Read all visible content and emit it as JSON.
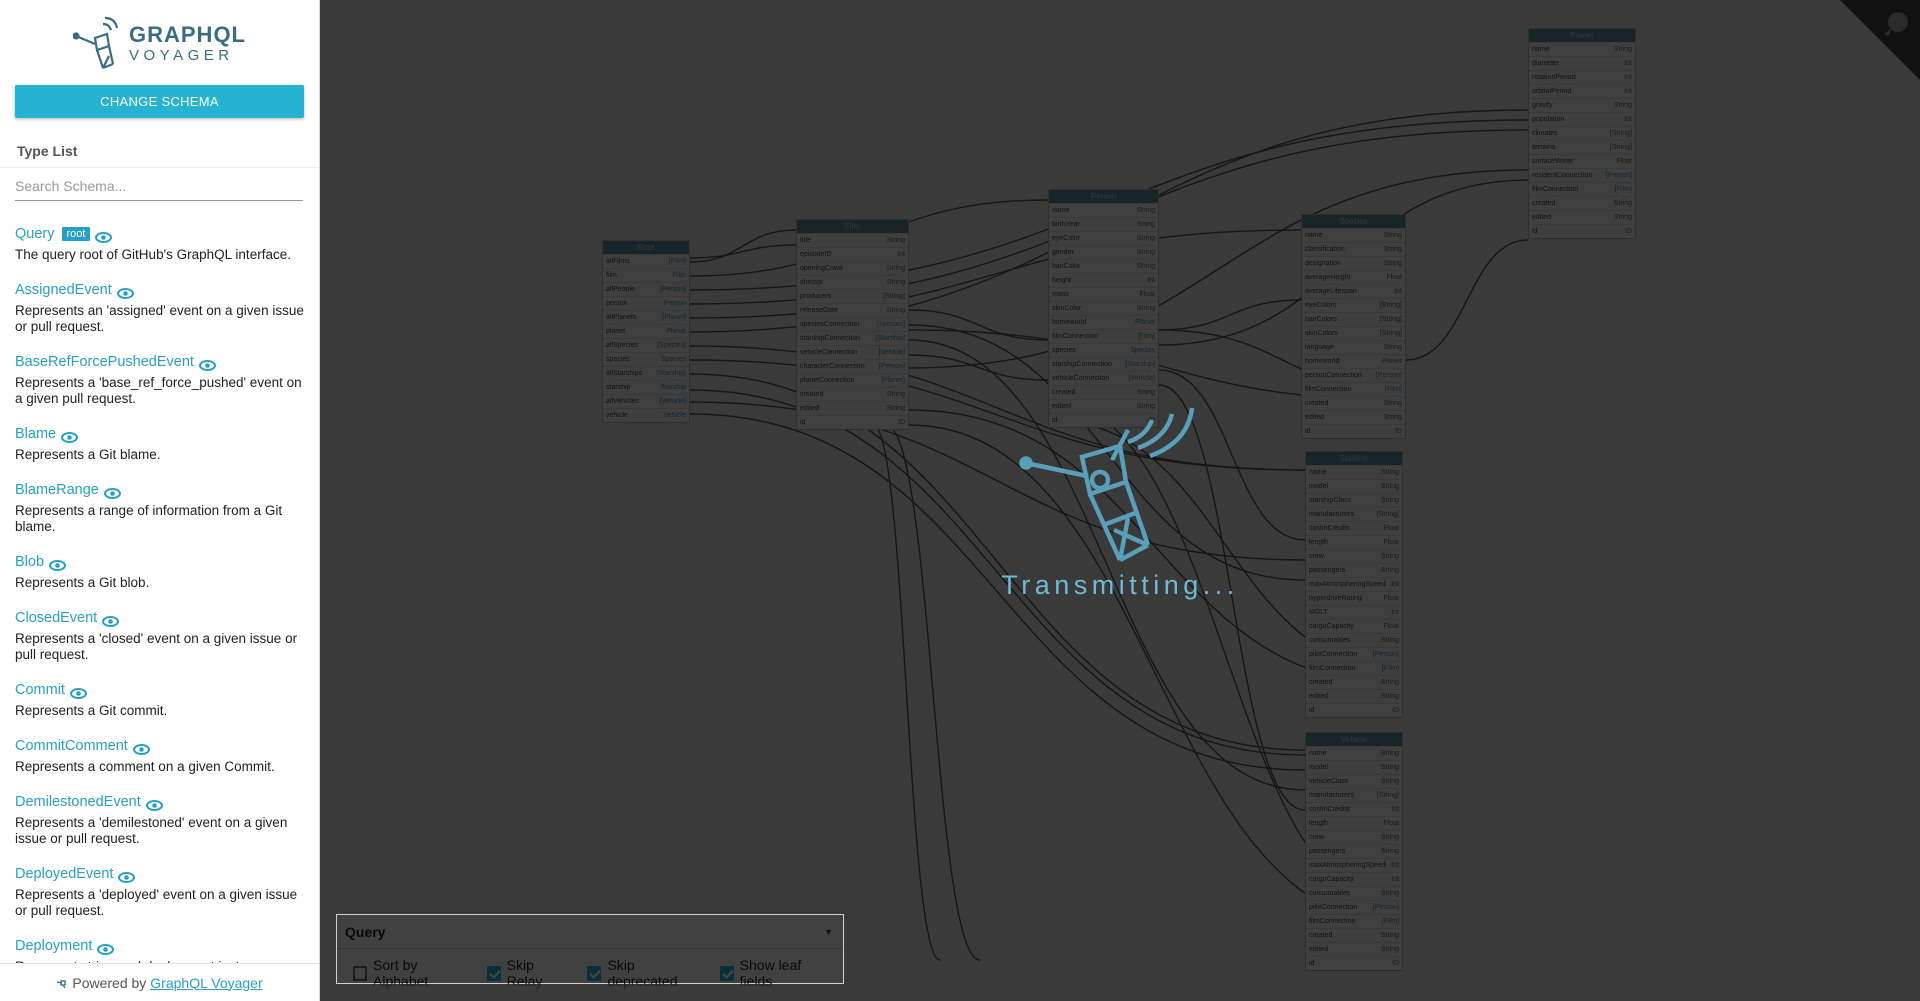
{
  "sidebar": {
    "logo": {
      "line1": "GRAPHQL",
      "line2": "VOYAGER"
    },
    "change_schema_label": "CHANGE SCHEMA",
    "type_list_title": "Type List",
    "search_placeholder": "Search Schema...",
    "root_badge": "root",
    "types": [
      {
        "name": "Query",
        "root": true,
        "desc": "The query root of GitHub's GraphQL interface."
      },
      {
        "name": "AssignedEvent",
        "root": false,
        "desc": "Represents an 'assigned' event on a given issue or pull request."
      },
      {
        "name": "BaseRefForcePushedEvent",
        "root": false,
        "desc": "Represents a 'base_ref_force_pushed' event on a given pull request."
      },
      {
        "name": "Blame",
        "root": false,
        "desc": "Represents a Git blame."
      },
      {
        "name": "BlameRange",
        "root": false,
        "desc": "Represents a range of information from a Git blame."
      },
      {
        "name": "Blob",
        "root": false,
        "desc": "Represents a Git blob."
      },
      {
        "name": "ClosedEvent",
        "root": false,
        "desc": "Represents a 'closed' event on a given issue or pull request."
      },
      {
        "name": "Commit",
        "root": false,
        "desc": "Represents a Git commit."
      },
      {
        "name": "CommitComment",
        "root": false,
        "desc": "Represents a comment on a given Commit."
      },
      {
        "name": "DemilestonedEvent",
        "root": false,
        "desc": "Represents a 'demilestoned' event on a given issue or pull request."
      },
      {
        "name": "DeployedEvent",
        "root": false,
        "desc": "Represents a 'deployed' event on a given issue or pull request."
      },
      {
        "name": "Deployment",
        "root": false,
        "desc": "Represents triggered deployment instance."
      }
    ],
    "powered_by": "Powered by",
    "powered_link": "GraphQL Voyager"
  },
  "loading": {
    "text": "Transmitting..."
  },
  "settings": {
    "root_type": "Query",
    "options": [
      {
        "label": "Sort by Alphabet",
        "checked": false
      },
      {
        "label": "Skip Relay",
        "checked": true
      },
      {
        "label": "Skip deprecated",
        "checked": true
      },
      {
        "label": "Show leaf fields",
        "checked": true
      }
    ]
  },
  "graph": {
    "nodes": [
      {
        "title": "Root",
        "fields": [
          [
            "allFilms",
            "[Film]"
          ],
          [
            "film",
            "Film"
          ],
          [
            "allPeople",
            "[Person]"
          ],
          [
            "person",
            "Person"
          ],
          [
            "allPlanets",
            "[Planet]"
          ],
          [
            "planet",
            "Planet"
          ],
          [
            "allSpecies",
            "[Species]"
          ],
          [
            "species",
            "Species"
          ],
          [
            "allStarships",
            "[Starship]"
          ],
          [
            "starship",
            "Starship"
          ],
          [
            "allVehicles",
            "[Vehicle]"
          ],
          [
            "vehicle",
            "Vehicle"
          ]
        ]
      },
      {
        "title": "Film",
        "fields": [
          [
            "title",
            "String"
          ],
          [
            "episodeID",
            "Int"
          ],
          [
            "openingCrawl",
            "String"
          ],
          [
            "director",
            "String"
          ],
          [
            "producers",
            "[String]"
          ],
          [
            "releaseDate",
            "String"
          ],
          [
            "speciesConnection",
            "[Species]"
          ],
          [
            "starshipConnection",
            "[Starship]"
          ],
          [
            "vehicleConnection",
            "[Vehicle]"
          ],
          [
            "characterConnection",
            "[Person]"
          ],
          [
            "planetConnection",
            "[Planet]"
          ],
          [
            "created",
            "String"
          ],
          [
            "edited",
            "String"
          ],
          [
            "id",
            "ID"
          ]
        ]
      },
      {
        "title": "Person",
        "fields": [
          [
            "name",
            "String"
          ],
          [
            "birthYear",
            "String"
          ],
          [
            "eyeColor",
            "String"
          ],
          [
            "gender",
            "String"
          ],
          [
            "hairColor",
            "String"
          ],
          [
            "height",
            "Int"
          ],
          [
            "mass",
            "Float"
          ],
          [
            "skinColor",
            "String"
          ],
          [
            "homeworld",
            "Planet"
          ],
          [
            "filmConnection",
            "[Film]"
          ],
          [
            "species",
            "Species"
          ],
          [
            "starshipConnection",
            "[Starship]"
          ],
          [
            "vehicleConnection",
            "[Vehicle]"
          ],
          [
            "created",
            "String"
          ],
          [
            "edited",
            "String"
          ],
          [
            "id",
            "ID"
          ]
        ]
      },
      {
        "title": "Species",
        "fields": [
          [
            "name",
            "String"
          ],
          [
            "classification",
            "String"
          ],
          [
            "designation",
            "String"
          ],
          [
            "averageHeight",
            "Float"
          ],
          [
            "averageLifespan",
            "Int"
          ],
          [
            "eyeColors",
            "[String]"
          ],
          [
            "hairColors",
            "[String]"
          ],
          [
            "skinColors",
            "[String]"
          ],
          [
            "language",
            "String"
          ],
          [
            "homeworld",
            "Planet"
          ],
          [
            "personConnection",
            "[Person]"
          ],
          [
            "filmConnection",
            "[Film]"
          ],
          [
            "created",
            "String"
          ],
          [
            "edited",
            "String"
          ],
          [
            "id",
            "ID"
          ]
        ]
      },
      {
        "title": "Planet",
        "fields": [
          [
            "name",
            "String"
          ],
          [
            "diameter",
            "Int"
          ],
          [
            "rotationPeriod",
            "Int"
          ],
          [
            "orbitalPeriod",
            "Int"
          ],
          [
            "gravity",
            "String"
          ],
          [
            "population",
            "Int"
          ],
          [
            "climates",
            "[String]"
          ],
          [
            "terrains",
            "[String]"
          ],
          [
            "surfaceWater",
            "Float"
          ],
          [
            "residentConnection",
            "[Person]"
          ],
          [
            "filmConnection",
            "[Film]"
          ],
          [
            "created",
            "String"
          ],
          [
            "edited",
            "String"
          ],
          [
            "id",
            "ID"
          ]
        ]
      },
      {
        "title": "Starship",
        "fields": [
          [
            "name",
            "String"
          ],
          [
            "model",
            "String"
          ],
          [
            "starshipClass",
            "String"
          ],
          [
            "manufacturers",
            "[String]"
          ],
          [
            "costInCredits",
            "Float"
          ],
          [
            "length",
            "Float"
          ],
          [
            "crew",
            "String"
          ],
          [
            "passengers",
            "String"
          ],
          [
            "maxAtmospheringSpeed",
            "Int"
          ],
          [
            "hyperdriveRating",
            "Float"
          ],
          [
            "MGLT",
            "Int"
          ],
          [
            "cargoCapacity",
            "Float"
          ],
          [
            "consumables",
            "String"
          ],
          [
            "pilotConnection",
            "[Person]"
          ],
          [
            "filmConnection",
            "[Film]"
          ],
          [
            "created",
            "String"
          ],
          [
            "edited",
            "String"
          ],
          [
            "id",
            "ID"
          ]
        ]
      },
      {
        "title": "Vehicle",
        "fields": [
          [
            "name",
            "String"
          ],
          [
            "model",
            "String"
          ],
          [
            "vehicleClass",
            "String"
          ],
          [
            "manufacturers",
            "[String]"
          ],
          [
            "costInCredits",
            "Int"
          ],
          [
            "length",
            "Float"
          ],
          [
            "crew",
            "String"
          ],
          [
            "passengers",
            "String"
          ],
          [
            "maxAtmospheringSpeed",
            "Int"
          ],
          [
            "cargoCapacity",
            "Int"
          ],
          [
            "consumables",
            "String"
          ],
          [
            "pilotConnection",
            "[Person]"
          ],
          [
            "filmConnection",
            "[Film]"
          ],
          [
            "created",
            "String"
          ],
          [
            "edited",
            "String"
          ],
          [
            "id",
            "ID"
          ]
        ]
      }
    ]
  }
}
